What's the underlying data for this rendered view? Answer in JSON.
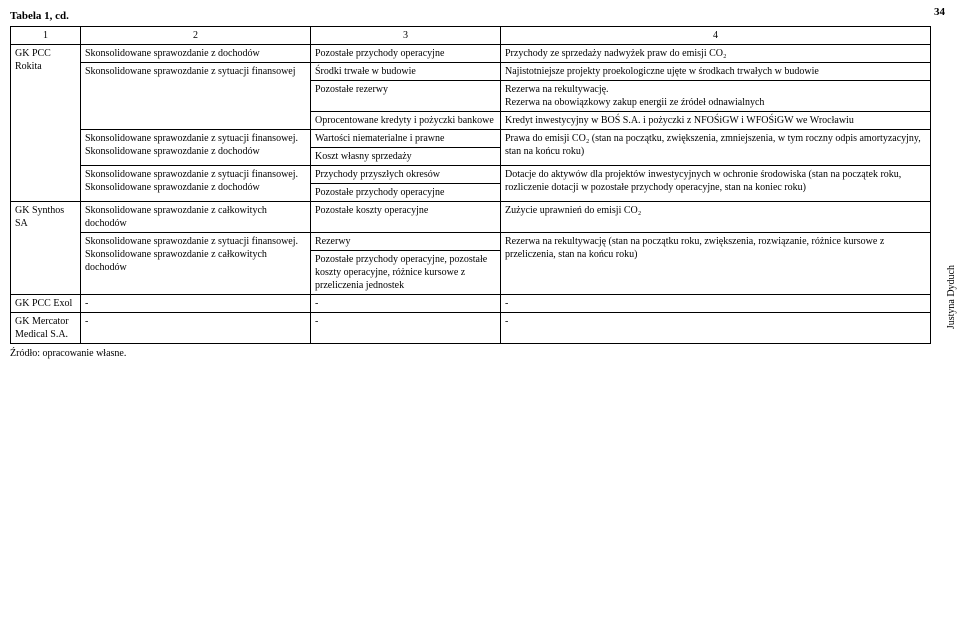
{
  "caption": "Tabela 1, cd.",
  "pagenum": "34",
  "sideauthor": "Justyna Dyduch",
  "header": {
    "c1": "1",
    "c2": "2",
    "c3": "3",
    "c4": "4"
  },
  "rows": {
    "r1": {
      "a": "GK PCC Rokita",
      "b": "Skonsolidowane sprawozdanie z dochodów",
      "c": "Pozostałe przychody operacyjne",
      "d": "Przychody ze sprzedaży nadwyżek praw do emisji CO₂"
    },
    "r2": {
      "b": "Skonsolidowane sprawozdanie z sytuacji finansowej",
      "c": "Środki trwałe w budowie",
      "d": "Najistotniejsze projekty proekologiczne ujęte w środkach trwałych w budowie"
    },
    "r3": {
      "c": "Pozostałe rezerwy",
      "d": "Rezerwa na rekultywację.\nRezerwa na obowiązkowy zakup energii ze źródeł odnawialnych"
    },
    "r4": {
      "c": "Oprocentowane kredyty i pożyczki bankowe",
      "d": "Kredyt inwestycyjny w BOŚ S.A. i pożyczki z NFOŚiGW i WFOŚiGW we Wrocławiu"
    },
    "r5": {
      "b": "Skonsolidowane sprawozdanie z sytuacji finansowej.\nSkonsolidowane sprawozdanie z dochodów",
      "c1": "Wartości niematerialne i prawne",
      "c2": "Koszt własny sprzedaży",
      "d": "Prawa do emisji CO₂ (stan na początku, zwiększenia, zmniejszenia, w tym roczny odpis amortyzacyjny, stan na końcu roku)"
    },
    "r6": {
      "b": "Skonsolidowane sprawozdanie z sytuacji finansowej.\nSkonsolidowane sprawozdanie z dochodów",
      "c1": "Przychody przyszłych okresów",
      "c2": "Pozostałe przychody operacyjne",
      "d": "Dotacje do aktywów dla projektów inwestycyjnych w ochronie środowiska (stan na początek roku, rozliczenie dotacji w pozostałe przychody operacyjne, stan na koniec roku)"
    },
    "r7": {
      "a": "GK Synthos SA",
      "b": "Skonsolidowane sprawozdanie z całkowitych dochodów",
      "c": "Pozostałe koszty operacyjne",
      "d": "Zużycie uprawnień do emisji CO₂"
    },
    "r8": {
      "b": "Skonsolidowane sprawozdanie z sytuacji finansowej.\nSkonsolidowane sprawozdanie z całkowitych dochodów",
      "c1": "Rezerwy",
      "c2": "Pozostałe przychody operacyjne, pozostałe koszty operacyjne, różnice kursowe z przeliczenia jednostek",
      "d": "Rezerwa na rekultywację (stan na początku roku, zwiększenia, rozwiązanie, różnice kursowe z przeliczenia, stan na końcu roku)"
    },
    "r9": {
      "a": "GK PCC Exol",
      "b": "-",
      "c": "-",
      "d": "-"
    },
    "r10": {
      "a": "GK Mercator Medical S.A.",
      "b": "-",
      "c": "-",
      "d": "-"
    }
  },
  "source": "Źródło: opracowanie własne."
}
